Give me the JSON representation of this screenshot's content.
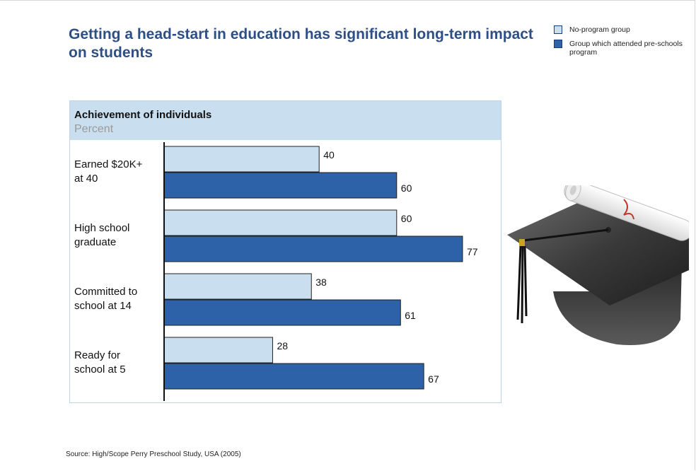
{
  "title": "Getting a head-start in education has significant long-term impact on students",
  "legend": [
    {
      "label": "No-program group",
      "color": "#c9dff0"
    },
    {
      "label": "Group which attended pre-schools program",
      "color": "#2e62a8"
    }
  ],
  "source": "Source: High/Scope Perry Preschool Study, USA (2005)",
  "illustration": "graduation-cap-and-diploma",
  "chart_data": {
    "type": "bar",
    "orientation": "horizontal",
    "title": "Achievement of individuals",
    "subtitle": "Percent",
    "categories": [
      [
        "Earned $20K+",
        "at 40"
      ],
      [
        "High school",
        "graduate"
      ],
      [
        "Committed to",
        "school at 14"
      ],
      [
        "Ready for",
        "school at 5"
      ]
    ],
    "series": [
      {
        "name": "No-program group",
        "color": "#c9dff0",
        "values": [
          40,
          60,
          38,
          28
        ]
      },
      {
        "name": "Group which attended pre-schools program",
        "color": "#2e62a8",
        "values": [
          60,
          77,
          61,
          67
        ]
      }
    ],
    "xlim": [
      0,
      100
    ],
    "grid": false,
    "data_labels": true,
    "legend_position": "top-right"
  }
}
